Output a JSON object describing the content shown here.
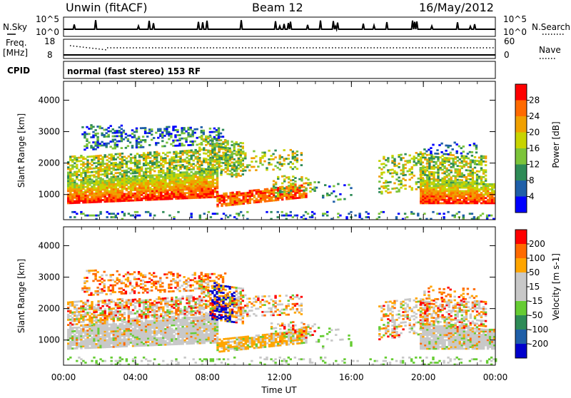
{
  "header": {
    "title": "Unwin (fitACF)",
    "beam": "Beam 12",
    "date": "16/May/2012"
  },
  "top_panels": {
    "nsky_label": "N.Sky",
    "nsky_ticks": [
      "10^5",
      "10^0"
    ],
    "nsearch_label": "N.Search",
    "nsearch_ticks": [
      "10^5",
      "10^0"
    ],
    "freq_label": "Freq.",
    "freq_unit": "[MHz]",
    "freq_ticks": [
      "18",
      "8"
    ],
    "nave_label": "Nave",
    "nave_ticks": [
      "60",
      "0"
    ],
    "cpid_label": "CPID",
    "cpid_text": "normal (fast stereo) 153 RF"
  },
  "colors": {
    "power": [
      "#0000ff",
      "#1f5fa8",
      "#2e8b57",
      "#7cc43a",
      "#c8d400",
      "#f0a000",
      "#ff6a00",
      "#ff0000"
    ],
    "velocity": [
      "#ff0000",
      "#ff6a00",
      "#ffa500",
      "#c8c8c8",
      "#c8c8c8",
      "#66cc33",
      "#2e8b57",
      "#1f5fa8",
      "#0000cc"
    ]
  },
  "chart_data": [
    {
      "type": "heatmap",
      "ylabel": "Slant Range [km]",
      "yticks": [
        1000,
        2000,
        3000,
        4000
      ],
      "ylim": [
        200,
        4600
      ],
      "xticks": [
        "00:00",
        "04:00",
        "08:00",
        "12:00",
        "16:00",
        "20:00",
        "00:00"
      ],
      "xlim": [
        0,
        24
      ],
      "colorbar": {
        "label": "Power [dB]",
        "ticks": [
          "4",
          "8",
          "12",
          "16",
          "20",
          "24",
          "28"
        ]
      }
    },
    {
      "type": "heatmap",
      "ylabel": "Slant Range [km]",
      "xlabel": "Time UT",
      "yticks": [
        1000,
        2000,
        3000,
        4000
      ],
      "ylim": [
        200,
        4600
      ],
      "xticks": [
        "00:00",
        "04:00",
        "08:00",
        "12:00",
        "16:00",
        "20:00",
        "00:00"
      ],
      "xlim": [
        0,
        24
      ],
      "colorbar": {
        "label": "Velocity [m s-1]",
        "ticks": [
          "200",
          "100",
          "50",
          "15",
          "-15",
          "-50",
          "-100",
          "-200"
        ]
      }
    }
  ]
}
